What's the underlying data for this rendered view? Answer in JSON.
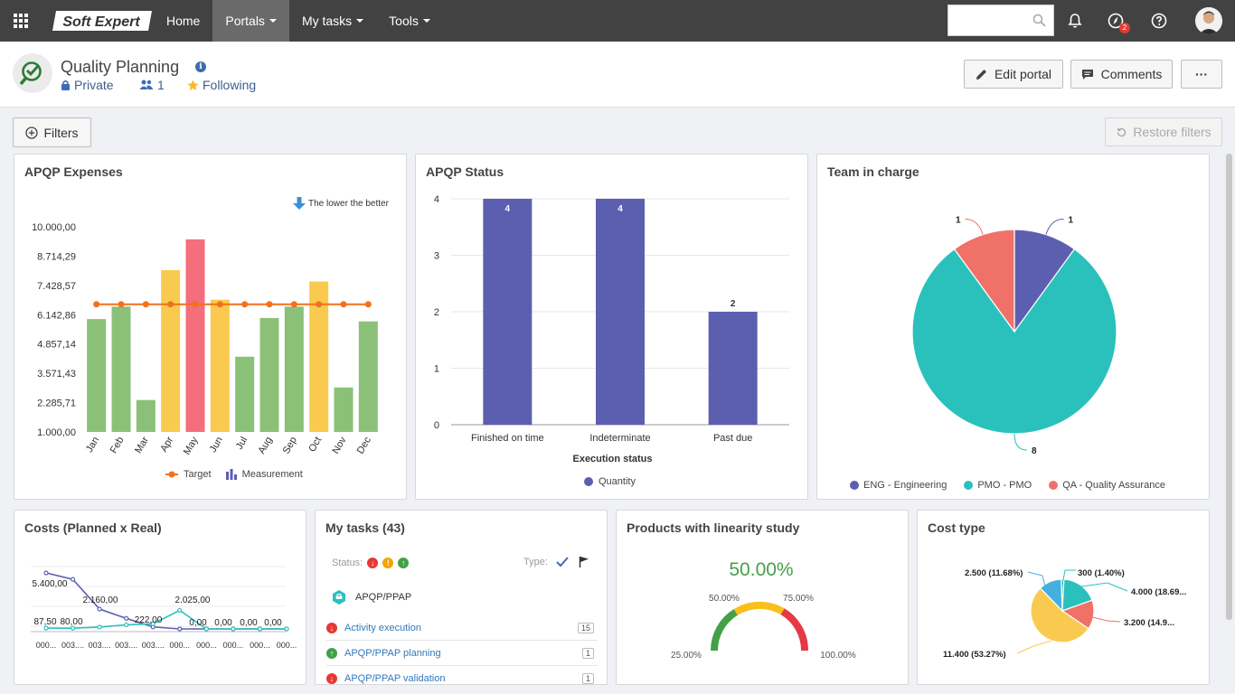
{
  "nav": {
    "logo_text": "Soft Expert",
    "items": [
      {
        "label": "Home",
        "caret": false
      },
      {
        "label": "Portals",
        "caret": true,
        "active": true
      },
      {
        "label": "My tasks",
        "caret": true
      },
      {
        "label": "Tools",
        "caret": true
      }
    ],
    "search": {
      "value": "",
      "placeholder": ""
    },
    "notif_badge": "2"
  },
  "header": {
    "title": "Quality Planning",
    "privacy": "Private",
    "members": "1",
    "following": "Following",
    "edit_label": "Edit portal",
    "comments_label": "Comments",
    "more_label": "···"
  },
  "toolbar": {
    "filters_label": "Filters",
    "restore_label": "Restore filters"
  },
  "colors": {
    "accent_blue": "#3d6cb4",
    "bar_green": "#8bc078",
    "bar_yellow": "#f9ca4f",
    "bar_red": "#f56e7b",
    "target_orange": "#f2711c",
    "status_purple": "#5c5fb0",
    "teal": "#2ac1bc",
    "salmon": "#f07168"
  },
  "panels": {
    "expenses": {
      "title": "APQP Expenses",
      "note": "The lower the better",
      "legend_target": "Target",
      "legend_measurement": "Measurement"
    },
    "status": {
      "title": "APQP Status",
      "xlabel": "Execution status",
      "legend": "Quantity"
    },
    "team": {
      "title": "Team in charge"
    },
    "costs": {
      "title": "Costs (Planned x Real)"
    },
    "tasks": {
      "title": "My tasks (43)",
      "status_label": "Status:",
      "type_label": "Type:",
      "group": "APQP/PPAP",
      "rows": [
        {
          "label": "Activity execution",
          "count": "15",
          "color": "#e53935"
        },
        {
          "label": "APQP/PPAP planning",
          "count": "1",
          "color": "#43a047"
        },
        {
          "label": "APQP/PPAP validation",
          "count": "1",
          "color": "#e53935"
        }
      ]
    },
    "linearity": {
      "title": "Products with linearity study",
      "value": "50.00%",
      "t25": "25.00%",
      "t50": "50.00%",
      "t75": "75.00%",
      "t100": "100.00%",
      "gauge_value": 0.5
    },
    "cost_type": {
      "title": "Cost type"
    }
  },
  "chart_data": [
    {
      "type": "bar",
      "name": "apqp_expenses",
      "categories": [
        "Jan",
        "Feb",
        "Mar",
        "Apr",
        "May",
        "Jun",
        "Jul",
        "Aug",
        "Sep",
        "Oct",
        "Nov",
        "Dec"
      ],
      "values": [
        5950,
        6500,
        2400,
        8100,
        9450,
        6800,
        4300,
        6000,
        6500,
        7600,
        2950,
        5850
      ],
      "colors": [
        "#8bc078",
        "#8bc078",
        "#8bc078",
        "#f9ca4f",
        "#f56e7b",
        "#f9ca4f",
        "#8bc078",
        "#8bc078",
        "#8bc078",
        "#f9ca4f",
        "#8bc078",
        "#8bc078"
      ],
      "target": 6600,
      "yticks": [
        "1.000,00",
        "2.285,71",
        "3.571,43",
        "4.857,14",
        "6.142,86",
        "7.428,57",
        "8.714,29",
        "10.000,00"
      ],
      "ylim": [
        1000,
        10000
      ]
    },
    {
      "type": "bar",
      "name": "apqp_status",
      "categories": [
        "Finished on time",
        "Indeterminate",
        "Past due"
      ],
      "values": [
        4,
        4,
        2
      ],
      "labels": [
        "4",
        "4",
        "2"
      ],
      "yticks": [
        "0",
        "1",
        "2",
        "3",
        "4"
      ],
      "ylim": [
        0,
        4
      ]
    },
    {
      "type": "pie",
      "name": "team_in_charge",
      "slices": [
        {
          "label": "ENG - Engineering",
          "value": 1,
          "text": "1",
          "color": "#5c5fb0"
        },
        {
          "label": "PMO - PMO",
          "value": 8,
          "text": "8",
          "color": "#2ac1bc"
        },
        {
          "label": "QA - Quality Assurance",
          "value": 1,
          "text": "1",
          "color": "#f07168"
        }
      ]
    },
    {
      "type": "line",
      "name": "costs_planned_real",
      "x": [
        "000...",
        "003....",
        "003....",
        "003....",
        "003....",
        "000...",
        "000...",
        "000...",
        "000...",
        "000..."
      ],
      "series": [
        {
          "values": [
            6100,
            5400,
            2160,
            1150,
            222,
            0,
            0,
            0,
            0,
            0
          ],
          "color": "#5c5fb0"
        },
        {
          "values": [
            87.5,
            80,
            200,
            450,
            560,
            2025,
            0,
            0,
            0,
            0
          ],
          "color": "#2ac1bc"
        }
      ],
      "labels": [
        "5.400,00",
        "2.160,00",
        "2.025,00",
        "87,50",
        "80,00",
        "222,00",
        "0,00",
        "0,00",
        "0,00",
        "0,00"
      ]
    },
    {
      "type": "pie",
      "name": "cost_type",
      "slices": [
        {
          "label": "300 (1.40%)",
          "value": 1.4,
          "color": "#2ac1bc"
        },
        {
          "label": "4.000 (18.69...",
          "value": 18.69,
          "color": "#2ac1bc"
        },
        {
          "label": "3.200 (14.9...",
          "value": 14.95,
          "color": "#f07168"
        },
        {
          "label": "11.400 (53.27%)",
          "value": 53.27,
          "color": "#f9ca4f"
        },
        {
          "label": "2.500 (11.68%)",
          "value": 11.68,
          "color": "#45b0e0"
        }
      ]
    }
  ]
}
